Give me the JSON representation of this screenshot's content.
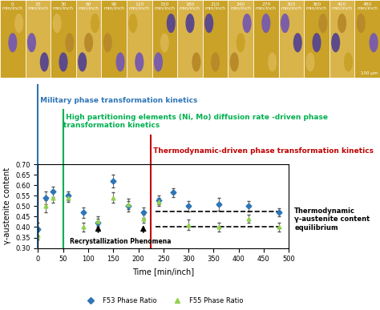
{
  "panels": {
    "labels": [
      "0 min/inch",
      "15 min/inch",
      "30 min/inch",
      "60 min/inch",
      "90 min/inch",
      "120 min/inch",
      "150 min/inch",
      "180 min/inch",
      "210 min/inch",
      "240 min/inch",
      "270 min/inch",
      "300 min/inch",
      "360 min/inch",
      "420 min/inch",
      "480 min/inch"
    ],
    "scale_bar": "100 µm"
  },
  "chart_data": {
    "type": "scatter",
    "x_label": "Time [min/inch]",
    "y_label": "γ-austenite content",
    "xlim": [
      0,
      500
    ],
    "xticks": [
      0,
      50,
      100,
      150,
      200,
      250,
      300,
      350,
      400,
      450,
      500
    ],
    "ylim": [
      0.3,
      0.7
    ],
    "yticks": [
      {
        "value": 0.3,
        "label": "0.30"
      },
      {
        "value": 0.35,
        "label": "0.35"
      },
      {
        "value": 0.4,
        "label": "0.40"
      },
      {
        "value": 0.45,
        "label": "0.45"
      },
      {
        "value": 0.5,
        "label": "0.50"
      },
      {
        "value": 0.55,
        "label": "0.55"
      },
      {
        "value": 0.6,
        "label": "0.60"
      },
      {
        "value": 0.65,
        "label": "0.65"
      },
      {
        "value": 0.7,
        "label": "0.70"
      }
    ],
    "grid": false,
    "legend": "lower center",
    "series": [
      {
        "name": "F53 Phase Ratio",
        "color": "#2e75b6",
        "marker": "diamond",
        "x": [
          0,
          15,
          30,
          60,
          90,
          120,
          150,
          180,
          210,
          240,
          270,
          300,
          360,
          420,
          480
        ],
        "values": [
          0.39,
          0.54,
          0.57,
          0.55,
          0.47,
          0.42,
          0.62,
          0.5,
          0.47,
          0.53,
          0.565,
          0.5,
          0.51,
          0.5,
          0.47
        ],
        "errors": [
          0.03,
          0.03,
          0.025,
          0.02,
          0.025,
          0.02,
          0.03,
          0.025,
          0.025,
          0.02,
          0.02,
          0.025,
          0.03,
          0.025,
          0.02
        ]
      },
      {
        "name": "F55 Phase Ratio",
        "color": "#92d050",
        "marker": "triangle",
        "x": [
          0,
          15,
          30,
          60,
          90,
          120,
          150,
          180,
          210,
          240,
          300,
          360,
          420,
          480
        ],
        "values": [
          0.36,
          0.5,
          0.54,
          0.54,
          0.4,
          0.43,
          0.54,
          0.51,
          0.44,
          0.52,
          0.41,
          0.4,
          0.44,
          0.4
        ],
        "errors": [
          0.02,
          0.03,
          0.025,
          0.02,
          0.02,
          0.02,
          0.025,
          0.025,
          0.02,
          0.02,
          0.025,
          0.02,
          0.02,
          0.02
        ]
      }
    ],
    "regions": [
      {
        "text": "Military phase transformation kinetics",
        "x": 0,
        "color": "#2e75b6"
      },
      {
        "text": "High partitioning elements (Ni, Mo) diffusion rate -driven phase transformation kinetics",
        "x": 50,
        "color": "#00b050"
      },
      {
        "text": "Thermodynamic-driven phase transformation kinetics",
        "x": 225,
        "color": "#c00000"
      }
    ],
    "reference_lines": {
      "text": "Thermodynamic γ-austenite content equilibrium",
      "y": [
        0.475,
        0.4
      ],
      "x": [
        235,
        480
      ]
    },
    "arrows": {
      "text": "Recrystallization Phenomena",
      "x": [
        120,
        210
      ]
    }
  }
}
